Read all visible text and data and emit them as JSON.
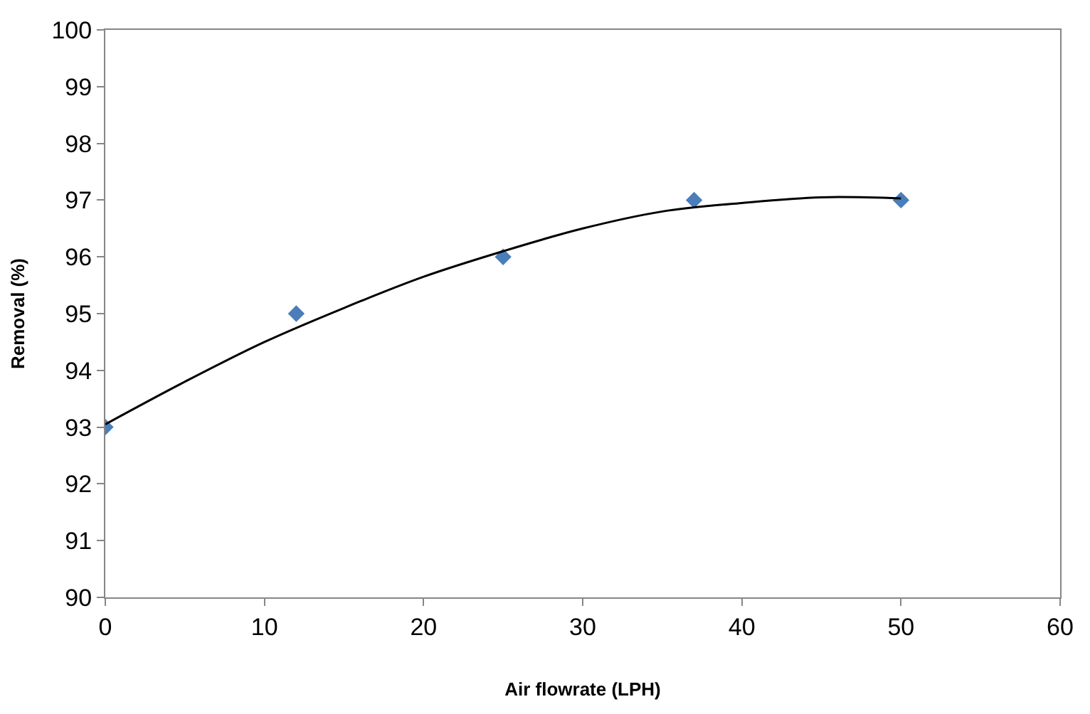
{
  "chart_data": {
    "type": "scatter",
    "xlabel": "Air flowrate (LPH)",
    "ylabel": "Removal (%)",
    "xlim": [
      0,
      60
    ],
    "xticks": [
      0,
      10,
      20,
      30,
      40,
      50,
      60
    ],
    "ylim": [
      90,
      100
    ],
    "yticks": [
      90,
      91,
      92,
      93,
      94,
      95,
      96,
      97,
      98,
      99,
      100
    ],
    "grid": false,
    "marker": "diamond",
    "series": [
      {
        "color": "#4a7ebb",
        "x": [
          0,
          12,
          25,
          37,
          50
        ],
        "values": [
          93,
          95,
          96,
          97,
          97
        ]
      },
      {
        "type": "line",
        "marker": "none",
        "color": "#000000",
        "x": [
          0,
          5,
          10,
          15,
          20,
          25,
          30,
          35,
          40,
          45,
          50
        ],
        "values": [
          93.05,
          93.8,
          94.5,
          95.1,
          95.65,
          96.1,
          96.5,
          96.8,
          96.95,
          97.05,
          97.03
        ]
      }
    ]
  }
}
